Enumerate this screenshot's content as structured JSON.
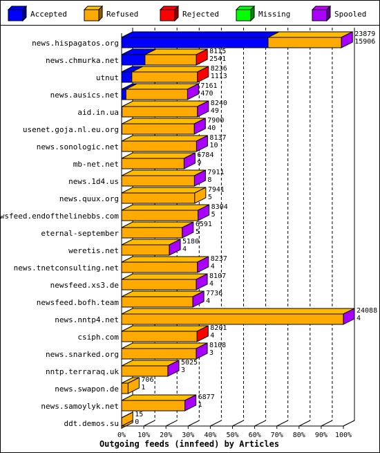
{
  "chart_data": {
    "type": "bar",
    "title": "",
    "xlabel": "Outgoing feeds (innfeed) by Articles",
    "ylabel": "",
    "orientation": "horizontal",
    "stacked": true,
    "xlim": [
      0,
      100
    ],
    "x_unit": "%",
    "grid": "vertical dashed",
    "legend_position": "top",
    "x_ticks": [
      "0%",
      "10%",
      "20%",
      "30%",
      "40%",
      "50%",
      "60%",
      "70%",
      "80%",
      "90%",
      "100%"
    ],
    "series": [
      {
        "name": "Accepted",
        "color": "#0000ff"
      },
      {
        "name": "Refused",
        "color": "#ffaa00"
      },
      {
        "name": "Rejected",
        "color": "#ff0000"
      },
      {
        "name": "Missing",
        "color": "#00ff00"
      },
      {
        "name": "Spooled",
        "color": "#aa00ff"
      }
    ],
    "categories": [
      "news.hispagatos.org",
      "news.chmurka.net",
      "utnut",
      "news.ausics.net",
      "aid.in.ua",
      "usenet.goja.nl.eu.org",
      "news.sonologic.net",
      "mb-net.net",
      "news.1d4.us",
      "news.quux.org",
      "newsfeed.endofthelinebbs.com",
      "eternal-september",
      "weretis.net",
      "news.tnetconsulting.net",
      "newsfeed.xs3.de",
      "newsfeed.bofh.team",
      "news.nntp4.net",
      "csiph.com",
      "news.snarked.org",
      "nntp.terraraq.uk",
      "news.swapon.de",
      "news.samoylyk.net",
      "ddt.demos.su"
    ],
    "offered": [
      23879,
      8115,
      8236,
      7161,
      8240,
      7900,
      8137,
      6784,
      7911,
      7941,
      8304,
      6591,
      5180,
      8237,
      8107,
      7736,
      24088,
      8201,
      8108,
      5025,
      706,
      6877,
      15
    ],
    "accepted": [
      15906,
      2541,
      1113,
      470,
      49,
      40,
      10,
      9,
      8,
      5,
      5,
      5,
      4,
      4,
      4,
      4,
      4,
      4,
      3,
      3,
      1,
      1,
      0
    ],
    "end_series": [
      "Spooled",
      "Rejected",
      "Rejected",
      "Spooled",
      "Spooled",
      "Spooled",
      "Spooled",
      "Spooled",
      "Spooled",
      "Refused",
      "Spooled",
      "Spooled",
      "Spooled",
      "Spooled",
      "Spooled",
      "Spooled",
      "Spooled",
      "Rejected",
      "Spooled",
      "Spooled",
      "Refused",
      "Spooled",
      "Refused"
    ]
  }
}
